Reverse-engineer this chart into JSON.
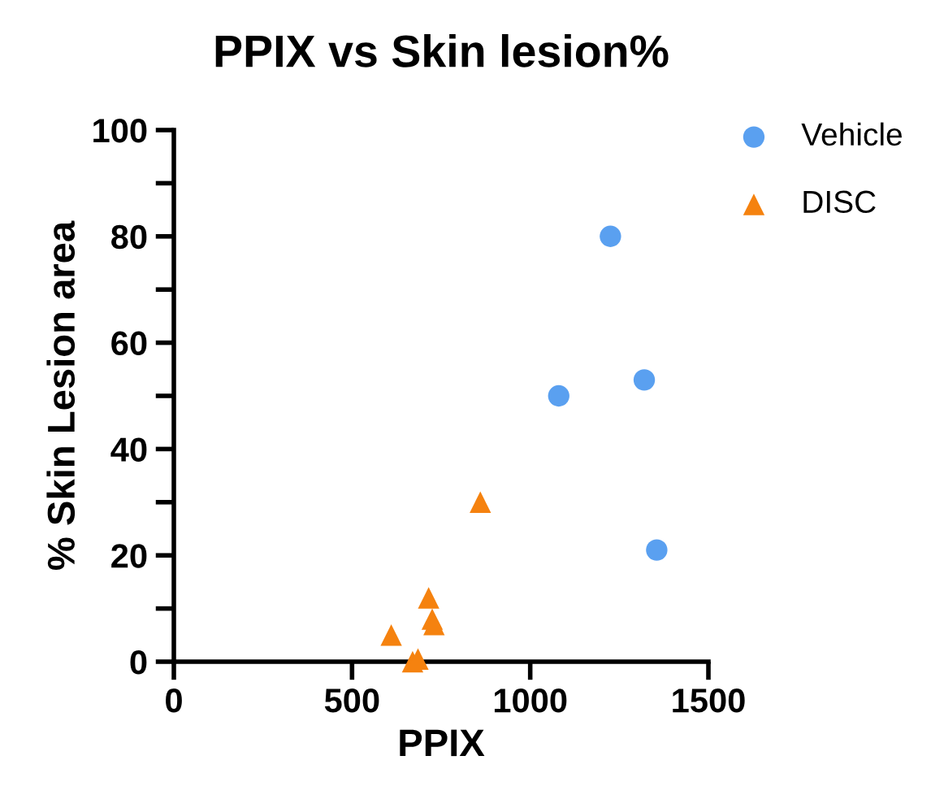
{
  "chart_data": {
    "type": "scatter",
    "title": "PPIX vs Skin lesion%",
    "xlabel": "PPIX",
    "ylabel": "% Skin Lesion area",
    "xlim": [
      0,
      1500
    ],
    "xticks": [
      0,
      500,
      1000,
      1500
    ],
    "ylim": [
      0,
      100
    ],
    "yticks": [
      0,
      {
        "value": 10,
        "label": null
      },
      20,
      {
        "value": 30,
        "label": null
      },
      40,
      {
        "value": 50,
        "label": null
      },
      60,
      {
        "value": 70,
        "label": null
      },
      80,
      {
        "value": 90,
        "label": null
      },
      100
    ],
    "grid": false,
    "legend": "top right",
    "series": [
      {
        "name": "Vehicle",
        "color": "#5aa0f0",
        "marker": "circle",
        "x": [
          1080,
          1225,
          1320,
          1355
        ],
        "values": [
          50,
          80,
          53,
          21
        ]
      },
      {
        "name": "DISC",
        "color": "#f5820f",
        "marker": "triangle",
        "x": [
          610,
          670,
          685,
          715,
          725,
          730,
          860
        ],
        "values": [
          5,
          0,
          0.5,
          12,
          8,
          7,
          30
        ]
      }
    ]
  }
}
